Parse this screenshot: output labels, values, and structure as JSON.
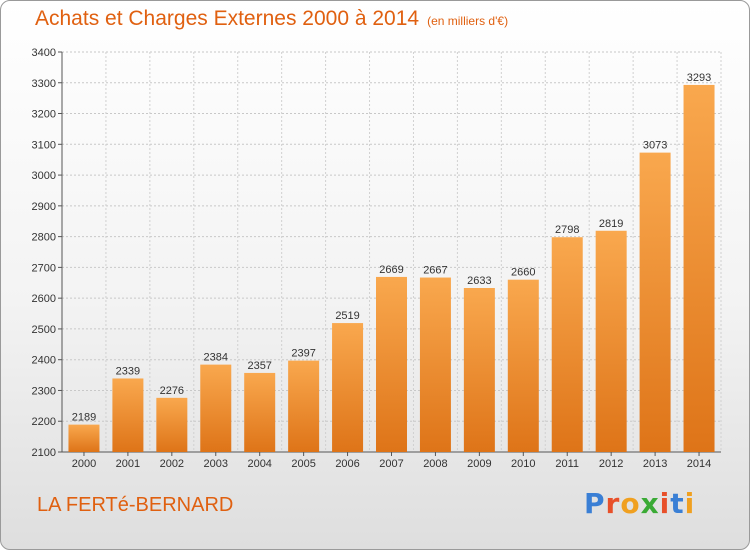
{
  "header": {
    "title": "Achats et Charges Externes 2000 à 2014",
    "subtitle": "(en milliers d'€)"
  },
  "footer": {
    "town": "LA FERTé-BERNARD",
    "brand": "Proxiti",
    "brand_letters": [
      {
        "ch": "P",
        "color": "#3a7fd5"
      },
      {
        "ch": "r",
        "color": "#e8502a"
      },
      {
        "ch": "o",
        "color": "#f0a020"
      },
      {
        "ch": "x",
        "color": "#3aaa35"
      },
      {
        "ch": "i",
        "color": "#e8502a"
      },
      {
        "ch": "t",
        "color": "#3a7fd5"
      },
      {
        "ch": "i",
        "color": "#f0a020"
      }
    ]
  },
  "colors": {
    "accent": "#e06010",
    "bar_light": "#f7a24c",
    "bar_dark": "#e07a20"
  },
  "chart_data": {
    "type": "bar",
    "title": "Achats et Charges Externes 2000 à 2014",
    "subtitle": "(en milliers d'€)",
    "categories": [
      "2000",
      "2001",
      "2002",
      "2003",
      "2004",
      "2005",
      "2006",
      "2007",
      "2008",
      "2009",
      "2010",
      "2011",
      "2012",
      "2013",
      "2014"
    ],
    "values": [
      2189,
      2339,
      2276,
      2384,
      2357,
      2397,
      2519,
      2669,
      2667,
      2633,
      2660,
      2798,
      2819,
      3073,
      3293
    ],
    "ylim": [
      2100,
      3400
    ],
    "yticks": [
      2100,
      2200,
      2300,
      2400,
      2500,
      2600,
      2700,
      2800,
      2900,
      3000,
      3100,
      3200,
      3300,
      3400
    ],
    "grid": true
  }
}
